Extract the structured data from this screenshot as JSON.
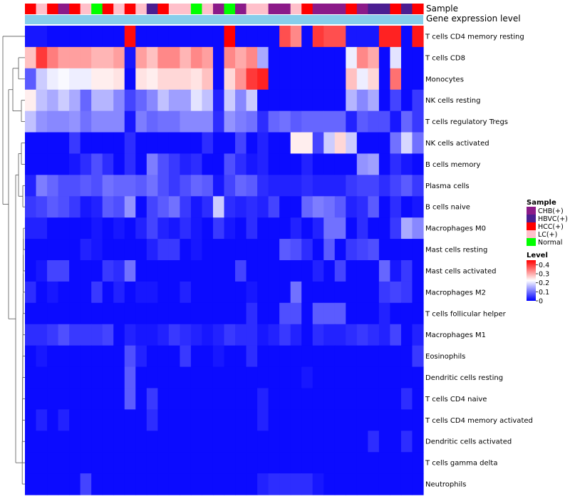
{
  "colors": {
    "CHB(+)": "#8B1A89",
    "HBVC(+)": "#4B1E91",
    "HCC(+)": "#FF0000",
    "LC(+)": "#FFC0CB",
    "Normal": "#00FF00",
    "gene_expression_bar": "#87CEEB",
    "scale_low": "#0000FF",
    "scale_mid": "#FFFFFF",
    "scale_high": "#FF0000"
  },
  "chart_data": {
    "type": "heatmap",
    "title": "",
    "annotation_track_labels": [
      "Sample",
      "Gene expression level"
    ],
    "rows": [
      "T cells CD4 memory resting",
      "T cells CD8",
      "Monocytes",
      "NK cells resting",
      "T cells regulatory  Tregs",
      "NK cells activated",
      "B cells memory",
      "Plasma cells",
      "B cells naive",
      "Macrophages M0",
      "Mast cells resting",
      "Mast cells activated",
      "Macrophages M2",
      "T cells follicular helper",
      "Macrophages M1",
      "Eosinophils",
      "Dendritic cells resting",
      "T cells CD4 naive",
      "T cells CD4 memory activated",
      "Dendritic cells activated",
      "T cells gamma delta",
      "Neutrophils"
    ],
    "samples": [
      "HCC(+)",
      "LC(+)",
      "HCC(+)",
      "CHB(+)",
      "HCC(+)",
      "LC(+)",
      "Normal",
      "HCC(+)",
      "LC(+)",
      "HCC(+)",
      "LC(+)",
      "HBVC(+)",
      "HCC(+)",
      "LC(+)",
      "LC(+)",
      "Normal",
      "LC(+)",
      "CHB(+)",
      "Normal",
      "CHB(+)",
      "LC(+)",
      "LC(+)",
      "CHB(+)",
      "CHB(+)",
      "LC(+)",
      "HCC(+)",
      "CHB(+)",
      "CHB(+)",
      "CHB(+)",
      "HCC(+)",
      "CHB(+)",
      "HBVC(+)",
      "HBVC(+)",
      "HCC(+)",
      "HBVC(+)",
      "HCC(+)"
    ],
    "values": [
      [
        0.02,
        0.02,
        0.01,
        0.01,
        0.01,
        0.01,
        0.01,
        0.01,
        0.01,
        0.44,
        0.01,
        0.01,
        0.01,
        0.01,
        0.01,
        0.01,
        0.01,
        0.01,
        0.45,
        0.01,
        0.01,
        0.01,
        0.01,
        0.38,
        0.33,
        0.01,
        0.4,
        0.38,
        0.38,
        0.02,
        0.02,
        0.02,
        0.42,
        0.42,
        0.01,
        0.43
      ],
      [
        0.28,
        0.4,
        0.34,
        0.31,
        0.31,
        0.31,
        0.29,
        0.29,
        0.31,
        0.02,
        0.31,
        0.28,
        0.33,
        0.33,
        0.29,
        0.33,
        0.31,
        0.01,
        0.33,
        0.3,
        0.33,
        0.15,
        0.01,
        0.01,
        0.01,
        0.01,
        0.01,
        0.01,
        0.01,
        0.21,
        0.33,
        0.3,
        0.01,
        0.2,
        0.01,
        0.01
      ],
      [
        0.08,
        0.18,
        0.21,
        0.22,
        0.21,
        0.21,
        0.24,
        0.24,
        0.25,
        0.01,
        0.25,
        0.24,
        0.26,
        0.26,
        0.26,
        0.25,
        0.28,
        0.01,
        0.26,
        0.32,
        0.4,
        0.42,
        0.01,
        0.01,
        0.01,
        0.01,
        0.01,
        0.01,
        0.01,
        0.28,
        0.21,
        0.26,
        0.01,
        0.35,
        0.01,
        0.01
      ],
      [
        0.24,
        0.17,
        0.15,
        0.18,
        0.15,
        0.09,
        0.16,
        0.16,
        0.12,
        0.06,
        0.09,
        0.12,
        0.17,
        0.14,
        0.14,
        0.2,
        0.17,
        0.03,
        0.18,
        0.12,
        0.18,
        0.01,
        0.01,
        0.01,
        0.01,
        0.01,
        0.01,
        0.01,
        0.01,
        0.16,
        0.12,
        0.15,
        0.01,
        0.06,
        0.01,
        0.05
      ],
      [
        0.17,
        0.13,
        0.12,
        0.12,
        0.13,
        0.1,
        0.12,
        0.12,
        0.12,
        0.02,
        0.11,
        0.09,
        0.1,
        0.1,
        0.12,
        0.12,
        0.12,
        0.04,
        0.13,
        0.11,
        0.1,
        0.04,
        0.09,
        0.1,
        0.08,
        0.09,
        0.09,
        0.09,
        0.09,
        0.03,
        0.08,
        0.07,
        0.07,
        0.02,
        0.09,
        0.05
      ],
      [
        0.01,
        0.01,
        0.01,
        0.01,
        0.05,
        0.01,
        0.01,
        0.01,
        0.01,
        0.04,
        0.01,
        0.01,
        0.01,
        0.01,
        0.01,
        0.01,
        0.04,
        0.01,
        0.01,
        0.06,
        0.01,
        0.03,
        0.01,
        0.01,
        0.24,
        0.24,
        0.06,
        0.18,
        0.26,
        0.18,
        0.01,
        0.01,
        0.01,
        0.1,
        0.19,
        0.1
      ],
      [
        0.01,
        0.01,
        0.01,
        0.01,
        0.02,
        0.04,
        0.07,
        0.04,
        0.01,
        0.04,
        0.01,
        0.11,
        0.07,
        0.05,
        0.03,
        0.04,
        0.01,
        0.01,
        0.07,
        0.04,
        0.02,
        0.03,
        0.01,
        0.01,
        0.01,
        0.03,
        0.01,
        0.01,
        0.01,
        0.01,
        0.13,
        0.14,
        0.01,
        0.04,
        0.02,
        0.01
      ],
      [
        0.03,
        0.11,
        0.09,
        0.07,
        0.07,
        0.08,
        0.07,
        0.1,
        0.09,
        0.09,
        0.08,
        0.1,
        0.07,
        0.05,
        0.07,
        0.09,
        0.08,
        0.02,
        0.06,
        0.09,
        0.08,
        0.04,
        0.03,
        0.03,
        0.03,
        0.04,
        0.03,
        0.03,
        0.03,
        0.05,
        0.06,
        0.06,
        0.04,
        0.06,
        0.08,
        0.05
      ],
      [
        0.05,
        0.06,
        0.08,
        0.07,
        0.05,
        0.02,
        0.03,
        0.08,
        0.07,
        0.13,
        0.01,
        0.06,
        0.08,
        0.1,
        0.05,
        0.02,
        0.04,
        0.18,
        0.04,
        0.03,
        0.04,
        0.03,
        0.06,
        0.01,
        0.01,
        0.09,
        0.11,
        0.1,
        0.08,
        0.03,
        0.04,
        0.08,
        0.01,
        0.04,
        0.01,
        0.02
      ],
      [
        0.03,
        0.03,
        0.01,
        0.01,
        0.01,
        0.01,
        0.02,
        0.01,
        0.02,
        0.01,
        0.03,
        0.06,
        0.03,
        0.02,
        0.04,
        0.02,
        0.01,
        0.05,
        0.02,
        0.01,
        0.04,
        0.01,
        0.01,
        0.01,
        0.03,
        0.01,
        0.03,
        0.1,
        0.1,
        0.01,
        0.04,
        0.01,
        0.01,
        0.05,
        0.15,
        0.12
      ],
      [
        0.01,
        0.01,
        0.01,
        0.01,
        0.01,
        0.03,
        0.02,
        0.01,
        0.01,
        0.01,
        0.01,
        0.03,
        0.05,
        0.05,
        0.01,
        0.02,
        0.01,
        0.01,
        0.01,
        0.01,
        0.01,
        0.01,
        0.01,
        0.08,
        0.07,
        0.04,
        0.01,
        0.08,
        0.01,
        0.05,
        0.06,
        0.07,
        0.01,
        0.01,
        0.01,
        0.01
      ],
      [
        0.01,
        0.02,
        0.06,
        0.06,
        0.01,
        0.01,
        0.01,
        0.05,
        0.04,
        0.1,
        0.01,
        0.01,
        0.01,
        0.01,
        0.01,
        0.01,
        0.01,
        0.01,
        0.01,
        0.06,
        0.01,
        0.01,
        0.01,
        0.01,
        0.01,
        0.01,
        0.03,
        0.01,
        0.06,
        0.01,
        0.01,
        0.01,
        0.09,
        0.02,
        0.05,
        0.01
      ],
      [
        0.04,
        0.01,
        0.02,
        0.01,
        0.01,
        0.01,
        0.05,
        0.01,
        0.03,
        0.01,
        0.02,
        0.02,
        0.01,
        0.01,
        0.03,
        0.01,
        0.01,
        0.01,
        0.01,
        0.01,
        0.02,
        0.01,
        0.01,
        0.01,
        0.1,
        0.01,
        0.01,
        0.01,
        0.01,
        0.01,
        0.01,
        0.01,
        0.05,
        0.06,
        0.05,
        0.01
      ],
      [
        0.01,
        0.01,
        0.01,
        0.01,
        0.01,
        0.01,
        0.01,
        0.01,
        0.01,
        0.01,
        0.01,
        0.01,
        0.01,
        0.01,
        0.01,
        0.01,
        0.01,
        0.01,
        0.01,
        0.01,
        0.04,
        0.01,
        0.01,
        0.07,
        0.07,
        0.01,
        0.08,
        0.08,
        0.08,
        0.01,
        0.01,
        0.01,
        0.03,
        0.01,
        0.01,
        0.01
      ],
      [
        0.04,
        0.04,
        0.05,
        0.07,
        0.05,
        0.05,
        0.05,
        0.06,
        0.01,
        0.03,
        0.02,
        0.02,
        0.03,
        0.05,
        0.04,
        0.03,
        0.02,
        0.03,
        0.05,
        0.04,
        0.04,
        0.02,
        0.03,
        0.05,
        0.03,
        0.01,
        0.04,
        0.03,
        0.03,
        0.04,
        0.05,
        0.04,
        0.03,
        0.06,
        0.01,
        0.03
      ],
      [
        0.01,
        0.02,
        0.01,
        0.01,
        0.01,
        0.01,
        0.01,
        0.01,
        0.01,
        0.07,
        0.03,
        0.01,
        0.01,
        0.01,
        0.05,
        0.01,
        0.01,
        0.02,
        0.01,
        0.01,
        0.04,
        0.01,
        0.01,
        0.01,
        0.01,
        0.01,
        0.01,
        0.01,
        0.01,
        0.01,
        0.01,
        0.01,
        0.01,
        0.01,
        0.01,
        0.05
      ],
      [
        0.01,
        0.01,
        0.01,
        0.01,
        0.01,
        0.01,
        0.01,
        0.01,
        0.01,
        0.08,
        0.01,
        0.01,
        0.01,
        0.01,
        0.01,
        0.01,
        0.01,
        0.01,
        0.01,
        0.01,
        0.01,
        0.01,
        0.01,
        0.01,
        0.01,
        0.02,
        0.01,
        0.01,
        0.01,
        0.01,
        0.01,
        0.01,
        0.01,
        0.01,
        0.01,
        0.01
      ],
      [
        0.01,
        0.01,
        0.01,
        0.01,
        0.01,
        0.01,
        0.01,
        0.01,
        0.01,
        0.08,
        0.01,
        0.05,
        0.01,
        0.01,
        0.01,
        0.01,
        0.01,
        0.01,
        0.01,
        0.01,
        0.01,
        0.03,
        0.01,
        0.01,
        0.01,
        0.01,
        0.01,
        0.01,
        0.01,
        0.01,
        0.01,
        0.01,
        0.01,
        0.01,
        0.04,
        0.01
      ],
      [
        0.01,
        0.03,
        0.01,
        0.03,
        0.01,
        0.01,
        0.01,
        0.01,
        0.01,
        0.01,
        0.01,
        0.04,
        0.01,
        0.01,
        0.01,
        0.01,
        0.01,
        0.01,
        0.01,
        0.01,
        0.01,
        0.03,
        0.01,
        0.01,
        0.01,
        0.01,
        0.01,
        0.01,
        0.01,
        0.01,
        0.01,
        0.01,
        0.01,
        0.01,
        0.01,
        0.01
      ],
      [
        0.01,
        0.01,
        0.01,
        0.01,
        0.01,
        0.01,
        0.01,
        0.01,
        0.01,
        0.01,
        0.01,
        0.01,
        0.01,
        0.01,
        0.01,
        0.01,
        0.01,
        0.01,
        0.01,
        0.01,
        0.01,
        0.01,
        0.01,
        0.01,
        0.01,
        0.01,
        0.01,
        0.01,
        0.01,
        0.01,
        0.01,
        0.04,
        0.01,
        0.01,
        0.04,
        0.01
      ],
      [
        0.01,
        0.01,
        0.01,
        0.01,
        0.01,
        0.01,
        0.01,
        0.01,
        0.01,
        0.01,
        0.01,
        0.01,
        0.01,
        0.01,
        0.01,
        0.01,
        0.01,
        0.01,
        0.01,
        0.01,
        0.01,
        0.01,
        0.01,
        0.01,
        0.01,
        0.01,
        0.01,
        0.01,
        0.01,
        0.01,
        0.01,
        0.01,
        0.01,
        0.01,
        0.01,
        0.01
      ],
      [
        0.01,
        0.01,
        0.01,
        0.01,
        0.01,
        0.06,
        0.01,
        0.01,
        0.01,
        0.01,
        0.01,
        0.01,
        0.01,
        0.01,
        0.01,
        0.01,
        0.01,
        0.01,
        0.01,
        0.01,
        0.01,
        0.03,
        0.04,
        0.04,
        0.04,
        0.04,
        0.02,
        0.01,
        0.01,
        0.01,
        0.01,
        0.01,
        0.01,
        0.01,
        0.01,
        0.01
      ]
    ],
    "color_scale": {
      "min": 0,
      "max": 0.45
    },
    "legend": {
      "sample_title": "Sample",
      "sample_entries": [
        "CHB(+)",
        "HBVC(+)",
        "HCC(+)",
        "LC(+)",
        "Normal"
      ],
      "level_title": "Level",
      "level_ticks": [
        "0.4",
        "0.3",
        "0.2",
        "0.1",
        "0"
      ],
      "level_tick_values": [
        0.4,
        0.3,
        0.2,
        0.1,
        0
      ],
      "placement": "right"
    },
    "dendrogram": "rows-left"
  }
}
